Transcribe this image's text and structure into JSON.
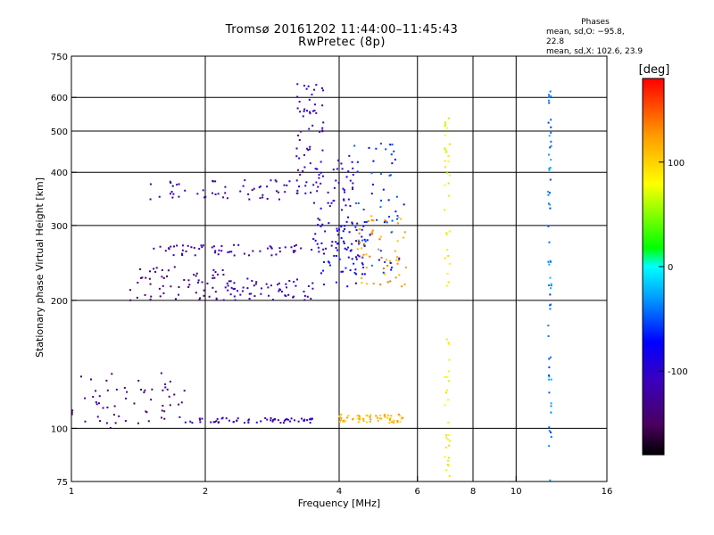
{
  "chart_data": {
    "type": "scatter",
    "title": "Tromsø 20161202 11:44:00–11:45:43",
    "subtitle": "RwPretec (8p)",
    "xlabel": "Frequency [MHz]",
    "ylabel": "Stationary phase Virtual Height [km]",
    "x_scale": "log",
    "y_scale": "log",
    "xlim": [
      1,
      16
    ],
    "ylim": [
      75,
      750
    ],
    "x_ticks": [
      1,
      2,
      4,
      6,
      8,
      10,
      16
    ],
    "x_tick_labels": [
      "1",
      "2",
      "4",
      "6",
      "8",
      "10",
      "16"
    ],
    "x_grid": [
      2,
      4,
      6,
      8,
      10
    ],
    "y_ticks": [
      75,
      100,
      200,
      300,
      400,
      500,
      600,
      750
    ],
    "y_tick_labels": [
      "75",
      "100",
      "200",
      "300",
      "400",
      "500",
      "600",
      "750"
    ],
    "y_grid": [
      100,
      200,
      300,
      400,
      500,
      600
    ],
    "stats": {
      "heading": "Phases",
      "line_o": "mean, sd,O: −95.8, 22.8",
      "line_x": "mean, sd,X: 102.6, 23.9"
    },
    "colorbar": {
      "label": "[deg]",
      "range": [
        -180,
        180
      ],
      "ticks": [
        -100,
        0,
        100
      ],
      "tick_labels": [
        "-100",
        "0",
        "100"
      ],
      "colormap": "rainbow (black-purple-blue-cyan-green-yellow-orange-red)"
    },
    "series": [
      {
        "x_range": [
          1.0,
          1.8
        ],
        "y_range": [
          100,
          135
        ],
        "phase": -135
      },
      {
        "x_range": [
          1.8,
          3.5
        ],
        "y_range": [
          103,
          106
        ],
        "phase": -110
      },
      {
        "x_range": [
          4.0,
          5.6
        ],
        "y_range": [
          103,
          108
        ],
        "phase": 115
      },
      {
        "x_range": [
          1.35,
          2.2
        ],
        "y_range": [
          200,
          240
        ],
        "phase": -140
      },
      {
        "x_range": [
          2.2,
          3.6
        ],
        "y_range": [
          200,
          225
        ],
        "phase": -110
      },
      {
        "x_range": [
          3.6,
          4.6
        ],
        "y_range": [
          215,
          310
        ],
        "phase": -80
      },
      {
        "x_range": [
          4.4,
          5.7
        ],
        "y_range": [
          215,
          320
        ],
        "phase": 125
      },
      {
        "x_range": [
          1.5,
          3.7
        ],
        "y_range": [
          255,
          270
        ],
        "phase": -115
      },
      {
        "x_range": [
          1.5,
          3.6
        ],
        "y_range": [
          345,
          385
        ],
        "phase": -120
      },
      {
        "x_range": [
          3.2,
          3.7
        ],
        "y_range": [
          370,
          650
        ],
        "phase": -110
      },
      {
        "x_range": [
          3.5,
          4.4
        ],
        "y_range": [
          260,
          440
        ],
        "phase": -100
      },
      {
        "x_range": [
          4.3,
          5.6
        ],
        "y_range": [
          230,
          470
        ],
        "phase": -60
      },
      {
        "x_range": [
          6.9,
          7.1
        ],
        "y_range": [
          75,
          560
        ],
        "phase": 80
      },
      {
        "x_range": [
          11.8,
          12.0
        ],
        "y_range": [
          75,
          640
        ],
        "phase": -40
      }
    ]
  }
}
